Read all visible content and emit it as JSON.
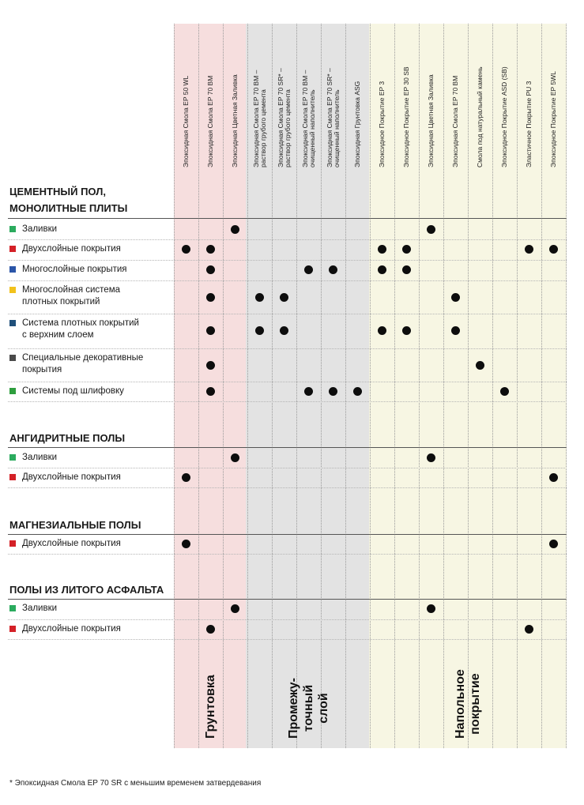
{
  "columns": [
    {
      "key": "ep50wl",
      "label": "Эпоксидная Смола EP 50 WL"
    },
    {
      "key": "ep70bm",
      "label": "Эпоксидная Смола EP 70 BM"
    },
    {
      "key": "cz1",
      "label": "Эпоксидная Цветная Заливка"
    },
    {
      "key": "ep70bm_r",
      "label": "Эпоксидная Смола EP 70 BM –\nраствор грубого цемента"
    },
    {
      "key": "ep70sr_r",
      "label": "Эпоксидная Смола EP 70 SR* –\nраствор грубого цемента"
    },
    {
      "key": "ep70bm_f",
      "label": "Эпоксидная Смола EP 70 BM –\nочищенный наполнитель"
    },
    {
      "key": "ep70sr_f",
      "label": "Эпоксидная Смола EP 70 SR* –\nочищенный наполнитель"
    },
    {
      "key": "asg",
      "label": "Эпоксидная Грунтовка ASG"
    },
    {
      "key": "ep3",
      "label": "Эпоксидное Покрытие EP 3"
    },
    {
      "key": "ep30sb",
      "label": "Эпоксидное Покрытие EP 30 SB"
    },
    {
      "key": "cz2",
      "label": "Эпоксидная Цветная Заливка"
    },
    {
      "key": "ep70bm2",
      "label": "Эпоксидная Смола EP 70 BM"
    },
    {
      "key": "stone",
      "label": "Смола под натуральный камень"
    },
    {
      "key": "asd",
      "label": "Эпоксидное Покрытие ASD (SB)"
    },
    {
      "key": "pu3",
      "label": "Эластичное Покрытие PU 3"
    },
    {
      "key": "ep5wl",
      "label": "Эпоксидное Покрытие EP 5WL"
    }
  ],
  "categories": [
    {
      "label": "Грунтовка"
    },
    {
      "label": "Промежу-\nточный\nслой"
    },
    {
      "label": "Напольное\nпокрытие"
    }
  ],
  "groups": [
    {
      "title": "ЦЕМЕНТНЫЙ ПОЛ,\nМОНОЛИТНЫЕ ПЛИТЫ",
      "rows": [
        {
          "label": "Заливки",
          "color": "#2bab5e",
          "dots": [
            2,
            10
          ]
        },
        {
          "label": "Двухслойные покрытия",
          "color": "#d42127",
          "dots": [
            0,
            1,
            8,
            9,
            14,
            15
          ]
        },
        {
          "label": "Многослойные покрытия",
          "color": "#2b55a8",
          "dots": [
            1,
            5,
            6,
            8,
            9
          ]
        },
        {
          "label": "Многослойная система\nплотных покрытий",
          "color": "#f2c21c",
          "dots": [
            1,
            3,
            4,
            11
          ]
        },
        {
          "label": "Система плотных покрытий\nс верхним слоем",
          "color": "#1f4f7a",
          "dots": [
            1,
            3,
            4,
            8,
            9,
            11
          ]
        },
        {
          "label": "Специальные декоративные\nпокрытия",
          "color": "#4a4a4a",
          "dots": [
            1,
            12
          ]
        },
        {
          "label": "Системы под шлифовку",
          "color": "#2e9e3e",
          "dots": [
            1,
            5,
            6,
            7,
            13
          ]
        }
      ]
    },
    {
      "title": "АНГИДРИТНЫЕ ПОЛЫ",
      "rows": [
        {
          "label": "Заливки",
          "color": "#2bab5e",
          "dots": [
            2,
            10
          ]
        },
        {
          "label": "Двухслойные покрытия",
          "color": "#d42127",
          "dots": [
            0,
            15
          ]
        }
      ]
    },
    {
      "title": "МАГНЕЗИАЛЬНЫЕ ПОЛЫ",
      "rows": [
        {
          "label": "Двухслойные покрытия",
          "color": "#d42127",
          "dots": [
            0,
            15
          ]
        }
      ]
    },
    {
      "title": "ПОЛЫ ИЗ ЛИТОГО АСФАЛЬТА",
      "rows": [
        {
          "label": "Заливки",
          "color": "#2bab5e",
          "dots": [
            2,
            10
          ]
        },
        {
          "label": "Двухслойные покрытия",
          "color": "#d42127",
          "dots": [
            1,
            14
          ]
        }
      ]
    }
  ],
  "footnote": "* Эпоксидная Смола EP 70 SR с меньшим временем затвердевания"
}
